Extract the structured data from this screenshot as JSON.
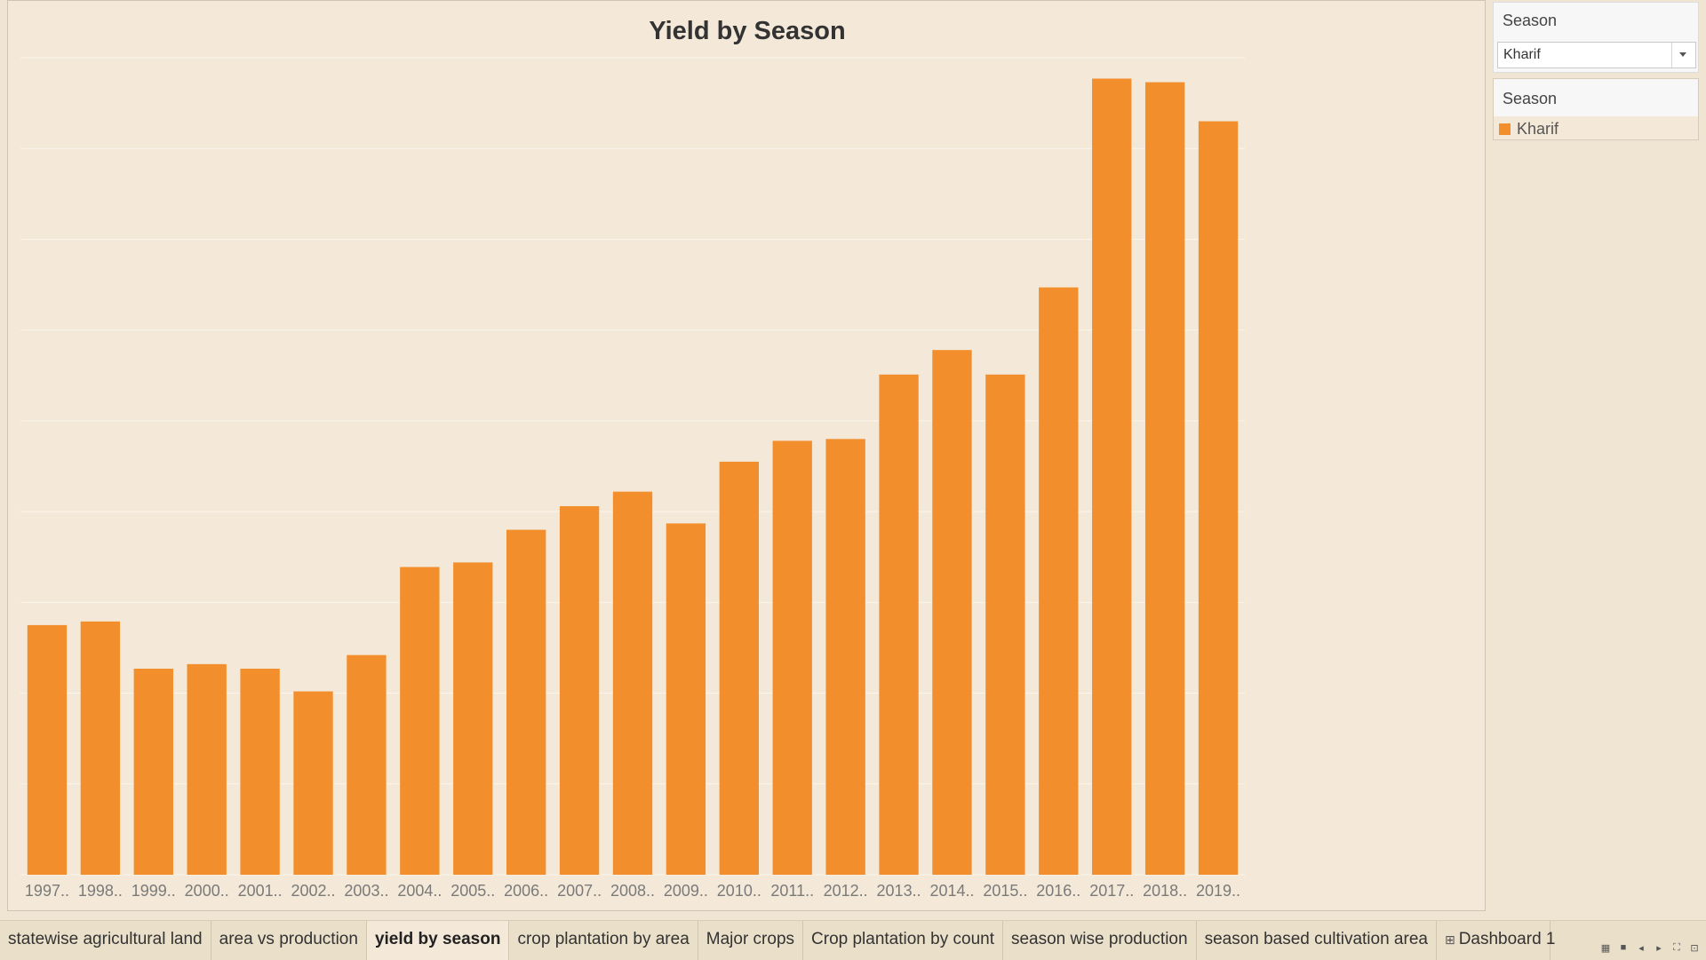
{
  "chart_data": {
    "type": "bar",
    "title": "Yield by Season",
    "categories": [
      "1997..",
      "1998..",
      "1999..",
      "2000..",
      "2001..",
      "2002..",
      "2003..",
      "2004..",
      "2005..",
      "2006..",
      "2007..",
      "2008..",
      "2009..",
      "2010..",
      "2011..",
      "2012..",
      "2013..",
      "2014..",
      "2015..",
      "2016..",
      "2017..",
      "2018..",
      "2019.."
    ],
    "series": [
      {
        "name": "Kharif",
        "values": [
          275,
          279,
          227,
          232,
          227,
          202,
          242,
          339,
          344,
          380,
          406,
          422,
          387,
          455,
          478,
          480,
          551,
          578,
          551,
          647,
          877,
          873,
          830
        ]
      }
    ],
    "xlabel": "",
    "ylabel": "",
    "ylim": [
      0,
      900
    ],
    "grid": true,
    "legend": "right panel",
    "color": "#f28e2b"
  },
  "filter": {
    "title": "Season",
    "value": "Kharif"
  },
  "legend": {
    "title": "Season",
    "items": [
      {
        "label": "Kharif",
        "color": "#f28e2b"
      }
    ]
  },
  "tabs": [
    {
      "label": "statewise agricultural land",
      "active": false
    },
    {
      "label": "area vs production",
      "active": false
    },
    {
      "label": "yield by season",
      "active": true
    },
    {
      "label": "crop plantation by area",
      "active": false
    },
    {
      "label": "Major crops",
      "active": false
    },
    {
      "label": "Crop plantation by count",
      "active": false
    },
    {
      "label": "season wise production",
      "active": false
    },
    {
      "label": "season based cultivation area",
      "active": false
    }
  ],
  "dashboard_tab": "Dashboard 1",
  "nav_controls": [
    "grid-view-icon",
    "filmstrip-icon",
    "prev-sheet-icon",
    "next-sheet-icon",
    "fullscreen-icon",
    "presentation-icon"
  ]
}
